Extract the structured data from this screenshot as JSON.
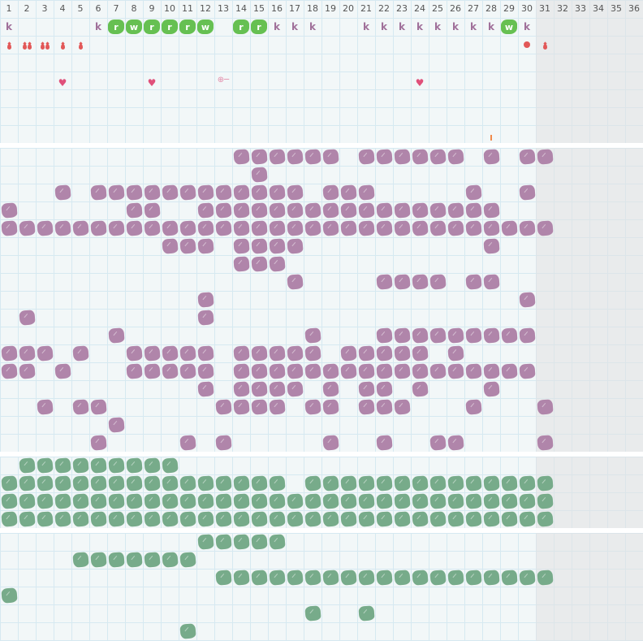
{
  "header": {
    "columns": [
      "1",
      "2",
      "3",
      "4",
      "5",
      "6",
      "7",
      "8",
      "9",
      "10",
      "11",
      "12",
      "13",
      "14",
      "15",
      "16",
      "17",
      "18",
      "19",
      "20",
      "21",
      "22",
      "23",
      "24",
      "25",
      "26",
      "27",
      "28",
      "29",
      "30",
      "31",
      "32",
      "33",
      "34",
      "35",
      "36"
    ]
  },
  "colors": {
    "purple": "#b085aa",
    "green": "#77ab8a",
    "badge_green": "#66c052",
    "letter": "#a0709a",
    "drop": "#e25858",
    "heart": "#e0507a",
    "shaded_columns_bg": "#efefef"
  },
  "shaded_columns": [
    31,
    32,
    33,
    34,
    35,
    36
  ],
  "top_rows": [
    [
      {
        "col": 1,
        "type": "letter",
        "text": "k"
      },
      {
        "col": 6,
        "type": "letter",
        "text": "k"
      },
      {
        "col": 7,
        "type": "badge",
        "text": "r"
      },
      {
        "col": 8,
        "type": "badge",
        "text": "w"
      },
      {
        "col": 9,
        "type": "badge",
        "text": "r"
      },
      {
        "col": 10,
        "type": "badge",
        "text": "r"
      },
      {
        "col": 11,
        "type": "badge",
        "text": "r"
      },
      {
        "col": 12,
        "type": "badge",
        "text": "w"
      },
      {
        "col": 14,
        "type": "badge",
        "text": "r"
      },
      {
        "col": 15,
        "type": "badge",
        "text": "r"
      },
      {
        "col": 16,
        "type": "letter",
        "text": "k"
      },
      {
        "col": 17,
        "type": "letter",
        "text": "k"
      },
      {
        "col": 18,
        "type": "letter",
        "text": "k"
      },
      {
        "col": 21,
        "type": "letter",
        "text": "k"
      },
      {
        "col": 22,
        "type": "letter",
        "text": "k"
      },
      {
        "col": 23,
        "type": "letter",
        "text": "k"
      },
      {
        "col": 24,
        "type": "letter",
        "text": "k"
      },
      {
        "col": 25,
        "type": "letter",
        "text": "k"
      },
      {
        "col": 26,
        "type": "letter",
        "text": "k"
      },
      {
        "col": 27,
        "type": "letter",
        "text": "k"
      },
      {
        "col": 28,
        "type": "letter",
        "text": "k"
      },
      {
        "col": 29,
        "type": "badge",
        "text": "w"
      },
      {
        "col": 30,
        "type": "letter",
        "text": "k"
      }
    ],
    [
      {
        "col": 1,
        "type": "icon",
        "icon": "drop-icon"
      },
      {
        "col": 2,
        "type": "icon",
        "icon": "double-drop-icon"
      },
      {
        "col": 3,
        "type": "icon",
        "icon": "double-drop-icon"
      },
      {
        "col": 4,
        "type": "icon",
        "icon": "drop-icon"
      },
      {
        "col": 5,
        "type": "icon",
        "icon": "drop-icon"
      },
      {
        "col": 30,
        "type": "icon",
        "icon": "dot-icon"
      },
      {
        "col": 31,
        "type": "icon",
        "icon": "drop-icon"
      }
    ],
    [],
    [
      {
        "col": 4,
        "type": "icon",
        "icon": "heart-icon"
      },
      {
        "col": 9,
        "type": "icon",
        "icon": "heart-icon"
      },
      {
        "col": 13,
        "type": "icon",
        "icon": "key-icon"
      },
      {
        "col": 24,
        "type": "icon",
        "icon": "heart-icon"
      }
    ],
    [],
    [],
    [
      {
        "col": 28,
        "type": "icon",
        "icon": "tick-mark-icon"
      }
    ]
  ],
  "purple_rows": [
    [
      14,
      15,
      16,
      17,
      18,
      19,
      21,
      22,
      23,
      24,
      25,
      26,
      28,
      30,
      31
    ],
    [
      15
    ],
    [
      4,
      6,
      7,
      8,
      9,
      10,
      11,
      12,
      13,
      14,
      15,
      16,
      17,
      19,
      20,
      21,
      27,
      30
    ],
    [
      1,
      8,
      9,
      12,
      13,
      14,
      15,
      16,
      17,
      18,
      19,
      20,
      21,
      22,
      23,
      24,
      25,
      26,
      27,
      28
    ],
    [
      1,
      2,
      3,
      4,
      5,
      6,
      7,
      8,
      9,
      10,
      11,
      12,
      13,
      14,
      15,
      16,
      17,
      18,
      19,
      20,
      21,
      22,
      23,
      24,
      25,
      26,
      27,
      28,
      29,
      30,
      31
    ],
    [
      10,
      11,
      12,
      14,
      15,
      16,
      17,
      28
    ],
    [
      14,
      15,
      16
    ],
    [
      17,
      22,
      23,
      24,
      25,
      27,
      28
    ],
    [
      12,
      30
    ],
    [
      2,
      12
    ],
    [
      7,
      18,
      22,
      23,
      24,
      25,
      26,
      27,
      28,
      29,
      30
    ],
    [
      1,
      2,
      3,
      5,
      8,
      9,
      10,
      11,
      12,
      14,
      15,
      16,
      17,
      18,
      20,
      21,
      22,
      23,
      24,
      26
    ],
    [
      1,
      2,
      4,
      8,
      9,
      10,
      11,
      12,
      14,
      15,
      16,
      17,
      18,
      19,
      20,
      21,
      22,
      23,
      24,
      25,
      26,
      27,
      28,
      29,
      30
    ],
    [
      12,
      14,
      15,
      16,
      17,
      19,
      21,
      22,
      24,
      28
    ],
    [
      3,
      5,
      6,
      13,
      14,
      15,
      16,
      18,
      19,
      21,
      22,
      23,
      27,
      31
    ],
    [
      7
    ],
    [
      6,
      11,
      13,
      19,
      22,
      25,
      26,
      31
    ]
  ],
  "green_rows_a": [
    [
      2,
      3,
      4,
      5,
      6,
      7,
      8,
      9,
      10
    ],
    [
      1,
      2,
      3,
      4,
      5,
      6,
      7,
      8,
      9,
      10,
      11,
      12,
      13,
      14,
      15,
      16,
      18,
      19,
      20,
      21,
      22,
      23,
      24,
      25,
      26,
      27,
      28,
      29,
      30,
      31
    ],
    [
      1,
      2,
      3,
      4,
      5,
      6,
      7,
      8,
      9,
      10,
      11,
      12,
      13,
      14,
      15,
      16,
      17,
      18,
      19,
      20,
      21,
      22,
      23,
      24,
      25,
      26,
      27,
      28,
      29,
      30,
      31
    ],
    [
      1,
      2,
      3,
      4,
      5,
      6,
      7,
      8,
      9,
      10,
      11,
      12,
      13,
      14,
      15,
      16,
      17,
      18,
      19,
      20,
      21,
      22,
      23,
      24,
      25,
      26,
      27,
      28,
      29,
      30,
      31
    ]
  ],
  "green_rows_b": [
    [
      12,
      13,
      14,
      15,
      16
    ],
    [
      5,
      6,
      7,
      8,
      9,
      10,
      11
    ],
    [
      13,
      14,
      15,
      16,
      17,
      18,
      19,
      20,
      21,
      22,
      23,
      24,
      25,
      26,
      27,
      28,
      29,
      30,
      31
    ],
    [
      1
    ],
    [
      18,
      21
    ],
    [
      11
    ]
  ]
}
